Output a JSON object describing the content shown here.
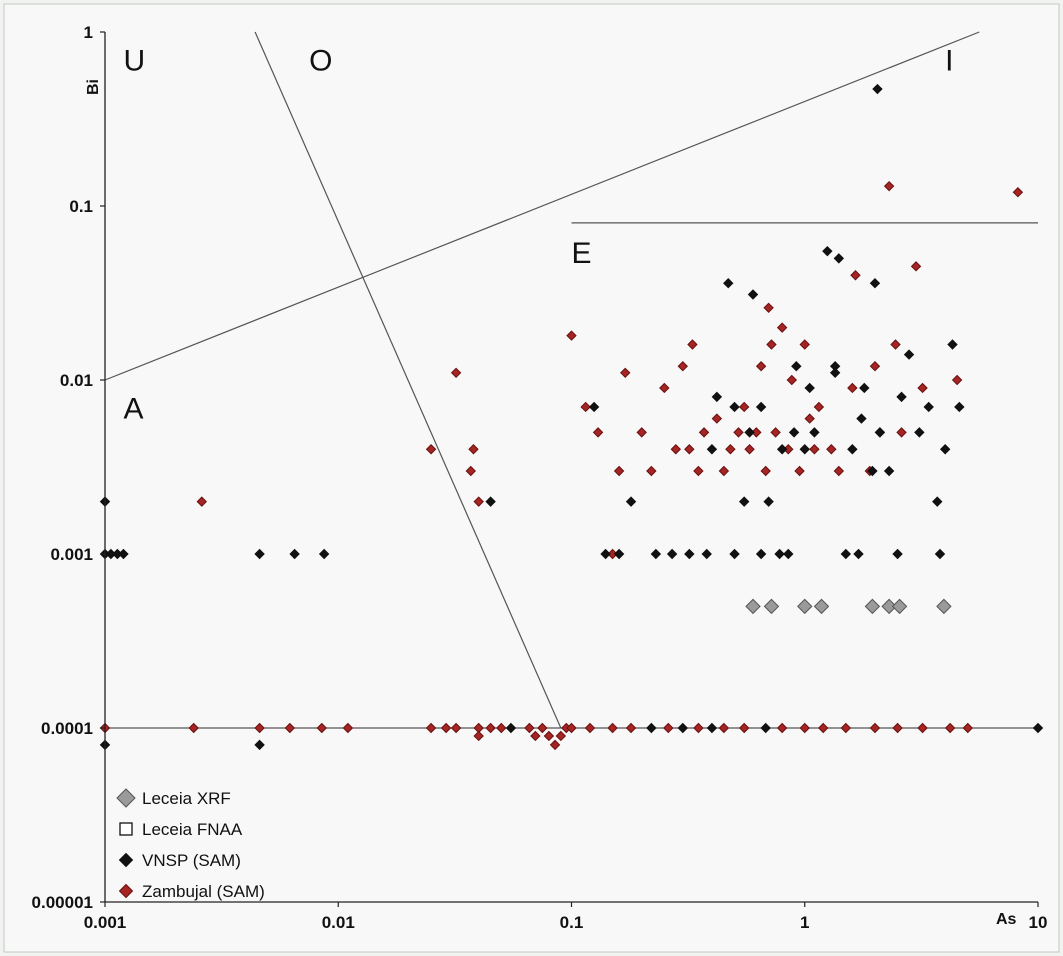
{
  "chart_data": {
    "type": "scatter",
    "xlabel": "As",
    "ylabel": "Bi",
    "x_scale": "log",
    "y_scale": "log",
    "xlim": [
      0.001,
      10
    ],
    "ylim": [
      1e-05,
      1
    ],
    "x_ticks": [
      {
        "value": 0.001,
        "label": "0.001"
      },
      {
        "value": 0.01,
        "label": "0.01"
      },
      {
        "value": 0.1,
        "label": "0.1"
      },
      {
        "value": 1,
        "label": "1"
      },
      {
        "value": 10,
        "label": "10"
      }
    ],
    "y_ticks": [
      {
        "value": 1,
        "label": "1"
      },
      {
        "value": 0.1,
        "label": "0.1"
      },
      {
        "value": 0.01,
        "label": "0.01"
      },
      {
        "value": 0.001,
        "label": "0.001"
      },
      {
        "value": 0.0001,
        "label": "0.0001"
      },
      {
        "value": 1e-05,
        "label": "0.00001"
      }
    ],
    "grid": false,
    "legend_position": "bottom-left",
    "region_labels": [
      {
        "label": "U",
        "x": 0.0012,
        "y": 0.6
      },
      {
        "label": "O",
        "x": 0.0075,
        "y": 0.6
      },
      {
        "label": "I",
        "x": 4.0,
        "y": 0.6
      },
      {
        "label": "E",
        "x": 0.1,
        "y": 0.047
      },
      {
        "label": "A",
        "x": 0.0012,
        "y": 0.006
      }
    ],
    "boundary_lines": [
      {
        "x": [
          0.001,
          5.6
        ],
        "y": [
          0.01,
          1
        ]
      },
      {
        "x": [
          0.0044,
          0.09
        ],
        "y": [
          1,
          0.0001
        ]
      },
      {
        "x": [
          0.1,
          10
        ],
        "y": [
          0.08,
          0.08
        ]
      },
      {
        "x": [
          0.001,
          10
        ],
        "y": [
          0.0001,
          0.0001
        ]
      }
    ],
    "series": [
      {
        "name": "Leceia XRF",
        "marker": "diamond",
        "color": "#9a9a9a",
        "edge": "#555555",
        "size": 14,
        "points": [
          {
            "x": 0.6,
            "y": 0.0005
          },
          {
            "x": 0.72,
            "y": 0.0005
          },
          {
            "x": 1.0,
            "y": 0.0005
          },
          {
            "x": 1.18,
            "y": 0.0005
          },
          {
            "x": 1.95,
            "y": 0.0005
          },
          {
            "x": 2.3,
            "y": 0.0005
          },
          {
            "x": 2.55,
            "y": 0.0005
          },
          {
            "x": 3.95,
            "y": 0.0005
          }
        ]
      },
      {
        "name": "Leceia FNAA",
        "marker": "square",
        "color": "#ffffff",
        "edge": "#111111",
        "size": 10,
        "points": []
      },
      {
        "name": "VNSP (SAM)",
        "marker": "diamond",
        "color": "#111111",
        "edge": "#111111",
        "size": 9,
        "points": [
          {
            "x": 0.001,
            "y": 0.002
          },
          {
            "x": 0.001,
            "y": 0.001
          },
          {
            "x": 0.00106,
            "y": 0.001
          },
          {
            "x": 0.00113,
            "y": 0.001
          },
          {
            "x": 0.0012,
            "y": 0.001
          },
          {
            "x": 0.001,
            "y": 8e-05
          },
          {
            "x": 0.0046,
            "y": 0.001
          },
          {
            "x": 0.0065,
            "y": 0.001
          },
          {
            "x": 0.0087,
            "y": 0.001
          },
          {
            "x": 0.0046,
            "y": 8e-05
          },
          {
            "x": 0.045,
            "y": 0.002
          },
          {
            "x": 0.055,
            "y": 0.0001
          },
          {
            "x": 0.125,
            "y": 0.007
          },
          {
            "x": 0.14,
            "y": 0.001
          },
          {
            "x": 0.16,
            "y": 0.001
          },
          {
            "x": 0.18,
            "y": 0.002
          },
          {
            "x": 0.23,
            "y": 0.001
          },
          {
            "x": 0.27,
            "y": 0.001
          },
          {
            "x": 0.32,
            "y": 0.001
          },
          {
            "x": 0.38,
            "y": 0.001
          },
          {
            "x": 0.4,
            "y": 0.004
          },
          {
            "x": 0.42,
            "y": 0.008
          },
          {
            "x": 0.47,
            "y": 0.036
          },
          {
            "x": 0.5,
            "y": 0.007
          },
          {
            "x": 0.5,
            "y": 0.001
          },
          {
            "x": 0.55,
            "y": 0.002
          },
          {
            "x": 0.58,
            "y": 0.005
          },
          {
            "x": 0.6,
            "y": 0.031
          },
          {
            "x": 0.65,
            "y": 0.001
          },
          {
            "x": 0.65,
            "y": 0.007
          },
          {
            "x": 0.7,
            "y": 0.002
          },
          {
            "x": 0.78,
            "y": 0.001
          },
          {
            "x": 0.8,
            "y": 0.004
          },
          {
            "x": 0.85,
            "y": 0.001
          },
          {
            "x": 0.9,
            "y": 0.005
          },
          {
            "x": 0.92,
            "y": 0.012
          },
          {
            "x": 1.0,
            "y": 0.004
          },
          {
            "x": 1.05,
            "y": 0.009
          },
          {
            "x": 1.1,
            "y": 0.005
          },
          {
            "x": 1.25,
            "y": 0.055
          },
          {
            "x": 1.35,
            "y": 0.012
          },
          {
            "x": 1.4,
            "y": 0.05
          },
          {
            "x": 1.35,
            "y": 0.011
          },
          {
            "x": 1.5,
            "y": 0.001
          },
          {
            "x": 1.6,
            "y": 0.004
          },
          {
            "x": 1.7,
            "y": 0.001
          },
          {
            "x": 1.75,
            "y": 0.006
          },
          {
            "x": 1.8,
            "y": 0.009
          },
          {
            "x": 1.95,
            "y": 0.003
          },
          {
            "x": 2.0,
            "y": 0.036
          },
          {
            "x": 2.05,
            "y": 0.47
          },
          {
            "x": 2.1,
            "y": 0.005
          },
          {
            "x": 2.3,
            "y": 0.003
          },
          {
            "x": 2.5,
            "y": 0.001
          },
          {
            "x": 2.6,
            "y": 0.008
          },
          {
            "x": 2.8,
            "y": 0.014
          },
          {
            "x": 3.1,
            "y": 0.005
          },
          {
            "x": 3.4,
            "y": 0.007
          },
          {
            "x": 3.7,
            "y": 0.002
          },
          {
            "x": 3.8,
            "y": 0.001
          },
          {
            "x": 4.0,
            "y": 0.004
          },
          {
            "x": 4.3,
            "y": 0.016
          },
          {
            "x": 4.6,
            "y": 0.007
          },
          {
            "x": 0.3,
            "y": 0.0001
          },
          {
            "x": 0.4,
            "y": 0.0001
          },
          {
            "x": 0.22,
            "y": 0.0001
          },
          {
            "x": 0.68,
            "y": 0.0001
          },
          {
            "x": 10,
            "y": 0.0001
          }
        ]
      },
      {
        "name": "Zambujal (SAM)",
        "marker": "diamond",
        "color": "#a52424",
        "edge": "#6a1010",
        "size": 9,
        "points": [
          {
            "x": 0.001,
            "y": 0.0001
          },
          {
            "x": 0.0046,
            "y": 0.0001
          },
          {
            "x": 0.0085,
            "y": 0.0001
          },
          {
            "x": 0.011,
            "y": 0.0001
          },
          {
            "x": 0.0062,
            "y": 0.0001
          },
          {
            "x": 0.0024,
            "y": 0.0001
          },
          {
            "x": 0.0026,
            "y": 0.002
          },
          {
            "x": 0.025,
            "y": 0.004
          },
          {
            "x": 0.032,
            "y": 0.011
          },
          {
            "x": 0.038,
            "y": 0.004
          },
          {
            "x": 0.037,
            "y": 0.003
          },
          {
            "x": 0.04,
            "y": 0.002
          },
          {
            "x": 0.025,
            "y": 0.0001
          },
          {
            "x": 0.029,
            "y": 0.0001
          },
          {
            "x": 0.032,
            "y": 0.0001
          },
          {
            "x": 0.04,
            "y": 0.0001
          },
          {
            "x": 0.045,
            "y": 0.0001
          },
          {
            "x": 0.04,
            "y": 9e-05
          },
          {
            "x": 0.05,
            "y": 0.0001
          },
          {
            "x": 0.066,
            "y": 0.0001
          },
          {
            "x": 0.07,
            "y": 9e-05
          },
          {
            "x": 0.075,
            "y": 0.0001
          },
          {
            "x": 0.08,
            "y": 9e-05
          },
          {
            "x": 0.085,
            "y": 8e-05
          },
          {
            "x": 0.09,
            "y": 9e-05
          },
          {
            "x": 0.095,
            "y": 0.0001
          },
          {
            "x": 0.1,
            "y": 0.0001
          },
          {
            "x": 0.1,
            "y": 0.018
          },
          {
            "x": 0.115,
            "y": 0.007
          },
          {
            "x": 0.13,
            "y": 0.005
          },
          {
            "x": 0.15,
            "y": 0.001
          },
          {
            "x": 0.16,
            "y": 0.003
          },
          {
            "x": 0.17,
            "y": 0.011
          },
          {
            "x": 0.2,
            "y": 0.005
          },
          {
            "x": 0.22,
            "y": 0.003
          },
          {
            "x": 0.25,
            "y": 0.009
          },
          {
            "x": 0.28,
            "y": 0.004
          },
          {
            "x": 0.3,
            "y": 0.012
          },
          {
            "x": 0.32,
            "y": 0.004
          },
          {
            "x": 0.33,
            "y": 0.016
          },
          {
            "x": 0.35,
            "y": 0.003
          },
          {
            "x": 0.37,
            "y": 0.005
          },
          {
            "x": 0.42,
            "y": 0.006
          },
          {
            "x": 0.45,
            "y": 0.003
          },
          {
            "x": 0.48,
            "y": 0.004
          },
          {
            "x": 0.52,
            "y": 0.005
          },
          {
            "x": 0.55,
            "y": 0.007
          },
          {
            "x": 0.58,
            "y": 0.004
          },
          {
            "x": 0.62,
            "y": 0.005
          },
          {
            "x": 0.65,
            "y": 0.012
          },
          {
            "x": 0.68,
            "y": 0.003
          },
          {
            "x": 0.7,
            "y": 0.026
          },
          {
            "x": 0.72,
            "y": 0.016
          },
          {
            "x": 0.75,
            "y": 0.005
          },
          {
            "x": 0.8,
            "y": 0.02
          },
          {
            "x": 0.85,
            "y": 0.004
          },
          {
            "x": 0.88,
            "y": 0.01
          },
          {
            "x": 0.95,
            "y": 0.003
          },
          {
            "x": 1.0,
            "y": 0.016
          },
          {
            "x": 1.05,
            "y": 0.006
          },
          {
            "x": 1.1,
            "y": 0.004
          },
          {
            "x": 1.15,
            "y": 0.007
          },
          {
            "x": 1.3,
            "y": 0.004
          },
          {
            "x": 1.4,
            "y": 0.003
          },
          {
            "x": 1.6,
            "y": 0.009
          },
          {
            "x": 1.65,
            "y": 0.04
          },
          {
            "x": 1.9,
            "y": 0.003
          },
          {
            "x": 2.0,
            "y": 0.012
          },
          {
            "x": 2.1,
            "y": 0.005
          },
          {
            "x": 2.3,
            "y": 0.13
          },
          {
            "x": 2.45,
            "y": 0.016
          },
          {
            "x": 2.6,
            "y": 0.005
          },
          {
            "x": 3.0,
            "y": 0.045
          },
          {
            "x": 3.2,
            "y": 0.009
          },
          {
            "x": 4.5,
            "y": 0.01
          },
          {
            "x": 8.2,
            "y": 0.12
          },
          {
            "x": 0.12,
            "y": 0.0001
          },
          {
            "x": 0.15,
            "y": 0.0001
          },
          {
            "x": 0.18,
            "y": 0.0001
          },
          {
            "x": 0.26,
            "y": 0.0001
          },
          {
            "x": 0.35,
            "y": 0.0001
          },
          {
            "x": 0.45,
            "y": 0.0001
          },
          {
            "x": 0.55,
            "y": 0.0001
          },
          {
            "x": 0.8,
            "y": 0.0001
          },
          {
            "x": 1.0,
            "y": 0.0001
          },
          {
            "x": 1.2,
            "y": 0.0001
          },
          {
            "x": 1.5,
            "y": 0.0001
          },
          {
            "x": 2.0,
            "y": 0.0001
          },
          {
            "x": 2.5,
            "y": 0.0001
          },
          {
            "x": 3.2,
            "y": 0.0001
          },
          {
            "x": 4.2,
            "y": 0.0001
          },
          {
            "x": 5.0,
            "y": 0.0001
          }
        ]
      }
    ]
  }
}
